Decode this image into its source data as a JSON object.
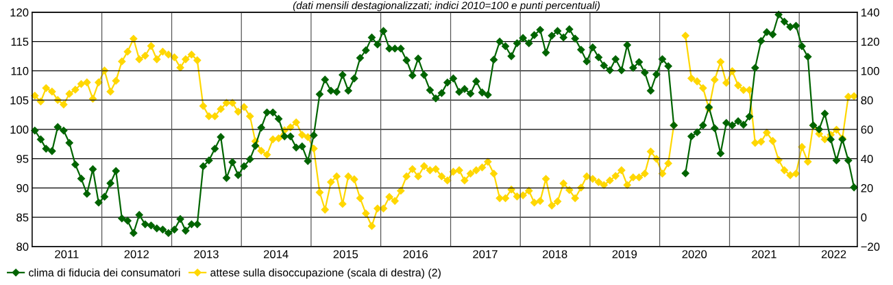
{
  "chart_data": {
    "type": "line",
    "subtitle": "(dati mensili destagionalizzati; indici 2010=100 e punti percentuali)",
    "x": [
      "2011-01",
      "2011-02",
      "2011-03",
      "2011-04",
      "2011-05",
      "2011-06",
      "2011-07",
      "2011-08",
      "2011-09",
      "2011-10",
      "2011-11",
      "2011-12",
      "2012-01",
      "2012-02",
      "2012-03",
      "2012-04",
      "2012-05",
      "2012-06",
      "2012-07",
      "2012-08",
      "2012-09",
      "2012-10",
      "2012-11",
      "2012-12",
      "2013-01",
      "2013-02",
      "2013-03",
      "2013-04",
      "2013-05",
      "2013-06",
      "2013-07",
      "2013-08",
      "2013-09",
      "2013-10",
      "2013-11",
      "2013-12",
      "2014-01",
      "2014-02",
      "2014-03",
      "2014-04",
      "2014-05",
      "2014-06",
      "2014-07",
      "2014-08",
      "2014-09",
      "2014-10",
      "2014-11",
      "2014-12",
      "2015-01",
      "2015-02",
      "2015-03",
      "2015-04",
      "2015-05",
      "2015-06",
      "2015-07",
      "2015-08",
      "2015-09",
      "2015-10",
      "2015-11",
      "2015-12",
      "2016-01",
      "2016-02",
      "2016-03",
      "2016-04",
      "2016-05",
      "2016-06",
      "2016-07",
      "2016-08",
      "2016-09",
      "2016-10",
      "2016-11",
      "2016-12",
      "2017-01",
      "2017-02",
      "2017-03",
      "2017-04",
      "2017-05",
      "2017-06",
      "2017-07",
      "2017-08",
      "2017-09",
      "2017-10",
      "2017-11",
      "2017-12",
      "2018-01",
      "2018-02",
      "2018-03",
      "2018-04",
      "2018-05",
      "2018-06",
      "2018-07",
      "2018-08",
      "2018-09",
      "2018-10",
      "2018-11",
      "2018-12",
      "2019-01",
      "2019-02",
      "2019-03",
      "2019-04",
      "2019-05",
      "2019-06",
      "2019-07",
      "2019-08",
      "2019-09",
      "2019-10",
      "2019-11",
      "2019-12",
      "2020-01",
      "2020-02",
      "2020-03",
      "2020-04",
      "2020-05",
      "2020-06",
      "2020-07",
      "2020-08",
      "2020-09",
      "2020-10",
      "2020-11",
      "2020-12",
      "2021-01",
      "2021-02",
      "2021-03",
      "2021-04",
      "2021-05",
      "2021-06",
      "2021-07",
      "2021-08",
      "2021-09",
      "2021-10",
      "2021-11",
      "2021-12",
      "2022-01",
      "2022-02",
      "2022-03",
      "2022-04",
      "2022-05",
      "2022-06",
      "2022-07",
      "2022-08",
      "2022-09",
      "2022-10"
    ],
    "series": [
      {
        "name": "clima di fiducia dei consumatori",
        "color": "#006400",
        "values": [
          99.8,
          98.3,
          96.7,
          96.3,
          100.4,
          99.8,
          97.7,
          94.0,
          91.6,
          89.0,
          93.2,
          87.5,
          88.5,
          90.8,
          92.9,
          84.8,
          84.4,
          82.3,
          85.4,
          83.8,
          83.6,
          83.1,
          82.9,
          82.3,
          82.9,
          84.7,
          82.7,
          83.8,
          83.8,
          93.7,
          94.7,
          96.7,
          98.7,
          91.7,
          94.4,
          92.2,
          93.7,
          94.9,
          97.2,
          100.3,
          102.9,
          102.9,
          101.8,
          98.8,
          98.8,
          96.9,
          97.1,
          94.6,
          99.0,
          106.0,
          108.5,
          106.6,
          106.4,
          109.3,
          106.6,
          108.7,
          112.2,
          113.5,
          115.7,
          114.5,
          116.8,
          113.8,
          113.8,
          113.8,
          111.8,
          109.2,
          112.1,
          109.3,
          106.7,
          105.3,
          106.2,
          108.0,
          108.7,
          106.4,
          106.9,
          106.1,
          108.2,
          106.3,
          105.9,
          111.9,
          115.0,
          114.2,
          112.5,
          114.7,
          115.6,
          114.7,
          116.1,
          117.0,
          113.1,
          116.0,
          116.8,
          115.7,
          117.1,
          115.5,
          113.6,
          111.6,
          114.0,
          112.3,
          110.9,
          110.1,
          112.0,
          110.1,
          114.4,
          110.5,
          111.5,
          109.7,
          106.6,
          109.4,
          112.0,
          110.8,
          100.7,
          null,
          92.5,
          98.8,
          99.5,
          100.7,
          103.8,
          100.2,
          95.9,
          101.1,
          100.7,
          101.4,
          100.8,
          102.2,
          110.5,
          115.1,
          116.6,
          116.2,
          119.6,
          118.4,
          117.5,
          117.7,
          114.2,
          112.4,
          100.7,
          100.0,
          102.7,
          98.3,
          94.7,
          98.3,
          94.7,
          90.1
        ]
      },
      {
        "name": "attese sulla disoccupazione (scala di destra) (2)",
        "color": "#ffd700",
        "axis": "y2",
        "values": [
          83.0,
          79.1,
          88.2,
          85.8,
          80.1,
          77.0,
          84.3,
          87.1,
          91.0,
          92.1,
          80.9,
          92.1,
          100.2,
          85.8,
          93.2,
          106.4,
          113.1,
          121.9,
          107.9,
          110.3,
          117.0,
          107.9,
          113.1,
          111.1,
          109.2,
          102.2,
          107.9,
          111.1,
          107.2,
          76.0,
          69.0,
          69.0,
          73.9,
          78.1,
          78.1,
          72.1,
          75.3,
          69.0,
          51.9,
          45.4,
          42.7,
          53.2,
          53.9,
          59.4,
          61.4,
          64.8,
          56.3,
          54.7,
          46.9,
          17.0,
          5.2,
          24.0,
          27.9,
          9.1,
          27.9,
          25.9,
          13.0,
          2.6,
          -6.0,
          6.0,
          6.0,
          13.9,
          11.1,
          18.1,
          27.9,
          32.9,
          27.9,
          34.9,
          32.1,
          32.9,
          27.9,
          25.1,
          31.1,
          32.1,
          25.1,
          29.8,
          32.1,
          34.0,
          37.9,
          29.8,
          13.0,
          13.0,
          18.9,
          14.2,
          15.0,
          18.1,
          10.0,
          11.1,
          26.2,
          8.0,
          10.8,
          23.1,
          18.6,
          13.0,
          20.2,
          27.9,
          26.2,
          24.0,
          22.0,
          25.1,
          28.2,
          32.1,
          22.0,
          27.2,
          27.2,
          29.8,
          44.9,
          39.9,
          29.8,
          36.8,
          62.8,
          null,
          124.0,
          94.9,
          92.8,
          88.2,
          74.2,
          93.9,
          106.1,
          91.8,
          99.8,
          90.0,
          86.9,
          86.9,
          50.8,
          51.6,
          57.8,
          52.1,
          39.1,
          32.1,
          28.7,
          29.8,
          48.0,
          37.9,
          62.8,
          57.0,
          53.2,
          56.3,
          59.8,
          53.9,
          82.3,
          82.7
        ]
      }
    ],
    "xlim": [
      "2011-01-01",
      "2022-11-01"
    ],
    "xticks": [
      {
        "value": "2011-07-01",
        "label": "2011"
      },
      {
        "value": "2012-01-01",
        "label": null
      },
      {
        "value": "2012-07-01",
        "label": "2012"
      },
      {
        "value": "2013-01-01",
        "label": null
      },
      {
        "value": "2013-07-01",
        "label": "2013"
      },
      {
        "value": "2014-01-01",
        "label": null
      },
      {
        "value": "2014-07-01",
        "label": "2014"
      },
      {
        "value": "2015-01-01",
        "label": null
      },
      {
        "value": "2015-07-01",
        "label": "2015"
      },
      {
        "value": "2016-01-01",
        "label": null
      },
      {
        "value": "2016-07-01",
        "label": "2016"
      },
      {
        "value": "2017-01-01",
        "label": null
      },
      {
        "value": "2017-07-01",
        "label": "2017"
      },
      {
        "value": "2018-01-01",
        "label": null
      },
      {
        "value": "2018-07-01",
        "label": "2018"
      },
      {
        "value": "2019-01-01",
        "label": null
      },
      {
        "value": "2019-07-01",
        "label": "2019"
      },
      {
        "value": "2020-01-01",
        "label": null
      },
      {
        "value": "2020-07-01",
        "label": "2020"
      },
      {
        "value": "2021-01-01",
        "label": null
      },
      {
        "value": "2021-07-01",
        "label": "2021"
      },
      {
        "value": "2022-01-01",
        "label": null
      },
      {
        "value": "2022-07-01",
        "label": "2022"
      }
    ],
    "ylim": [
      80,
      120
    ],
    "yticks": [
      80,
      85,
      90,
      95,
      100,
      105,
      110,
      115,
      120
    ],
    "y2lim": [
      -20,
      140
    ],
    "y2ticks": [
      -20,
      0,
      20,
      40,
      60,
      80,
      100,
      120,
      140
    ],
    "grid": true,
    "legend": "bottom",
    "marker": "diamond",
    "line_style": "solid"
  }
}
